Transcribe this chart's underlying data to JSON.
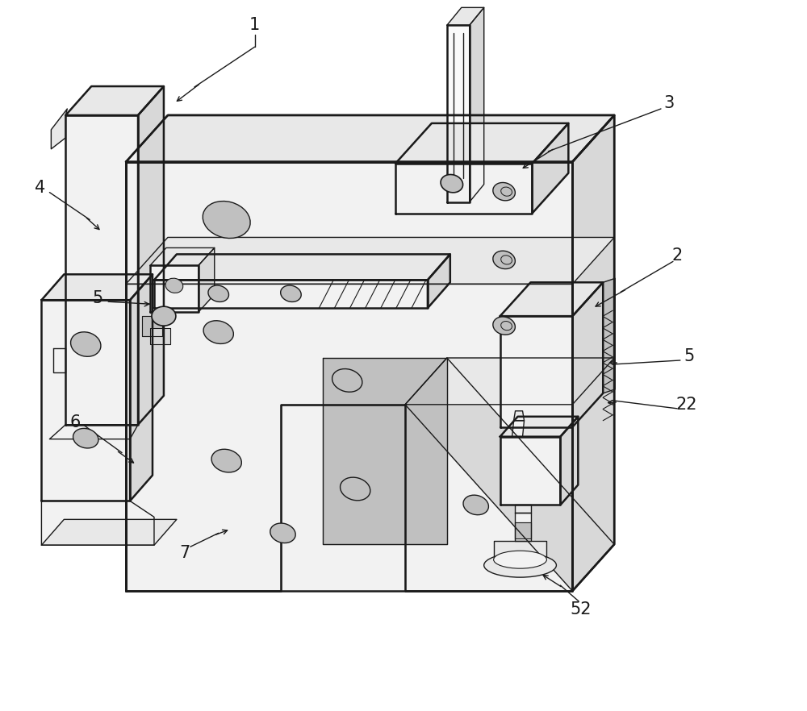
{
  "bg_color": "#ffffff",
  "line_color": "#1a1a1a",
  "lw_main": 1.8,
  "lw_thin": 1.0,
  "lw_detail": 0.7,
  "figure_width": 10.0,
  "figure_height": 8.82,
  "dpi": 100,
  "gray_face": "#f2f2f2",
  "gray_side": "#d8d8d8",
  "gray_top": "#e8e8e8",
  "gray_dark": "#c0c0c0",
  "white_face": "#fafafa"
}
